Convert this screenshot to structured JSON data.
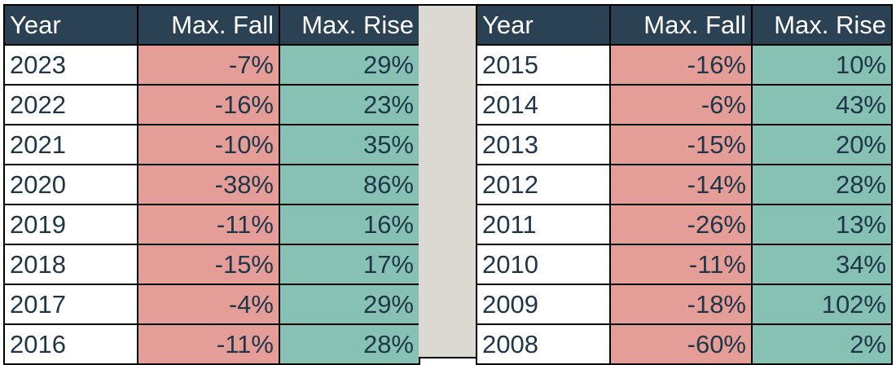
{
  "chart_data": {
    "type": "table",
    "columns": [
      "Year",
      "Max. Fall",
      "Max. Rise"
    ],
    "tables": [
      {
        "rows": [
          {
            "year": "2023",
            "max_fall": "-7%",
            "max_rise": "29%"
          },
          {
            "year": "2022",
            "max_fall": "-16%",
            "max_rise": "23%"
          },
          {
            "year": "2021",
            "max_fall": "-10%",
            "max_rise": "35%"
          },
          {
            "year": "2020",
            "max_fall": "-38%",
            "max_rise": "86%"
          },
          {
            "year": "2019",
            "max_fall": "-11%",
            "max_rise": "16%"
          },
          {
            "year": "2018",
            "max_fall": "-15%",
            "max_rise": "17%"
          },
          {
            "year": "2017",
            "max_fall": "-4%",
            "max_rise": "29%"
          },
          {
            "year": "2016",
            "max_fall": "-11%",
            "max_rise": "28%"
          }
        ]
      },
      {
        "rows": [
          {
            "year": "2015",
            "max_fall": "-16%",
            "max_rise": "10%"
          },
          {
            "year": "2014",
            "max_fall": "-6%",
            "max_rise": "43%"
          },
          {
            "year": "2013",
            "max_fall": "-15%",
            "max_rise": "20%"
          },
          {
            "year": "2012",
            "max_fall": "-14%",
            "max_rise": "28%"
          },
          {
            "year": "2011",
            "max_fall": "-26%",
            "max_rise": "13%"
          },
          {
            "year": "2010",
            "max_fall": "-11%",
            "max_rise": "34%"
          },
          {
            "year": "2009",
            "max_fall": "-18%",
            "max_rise": "102%"
          },
          {
            "year": "2008",
            "max_fall": "-60%",
            "max_rise": "2%"
          }
        ]
      }
    ],
    "colors": {
      "header_bg": "#2b4154",
      "header_text": "#ffffff",
      "fall_bg": "#e59d98",
      "rise_bg": "#86c1b3",
      "text": "#1f3648",
      "separator": "#dcd9d2"
    }
  }
}
